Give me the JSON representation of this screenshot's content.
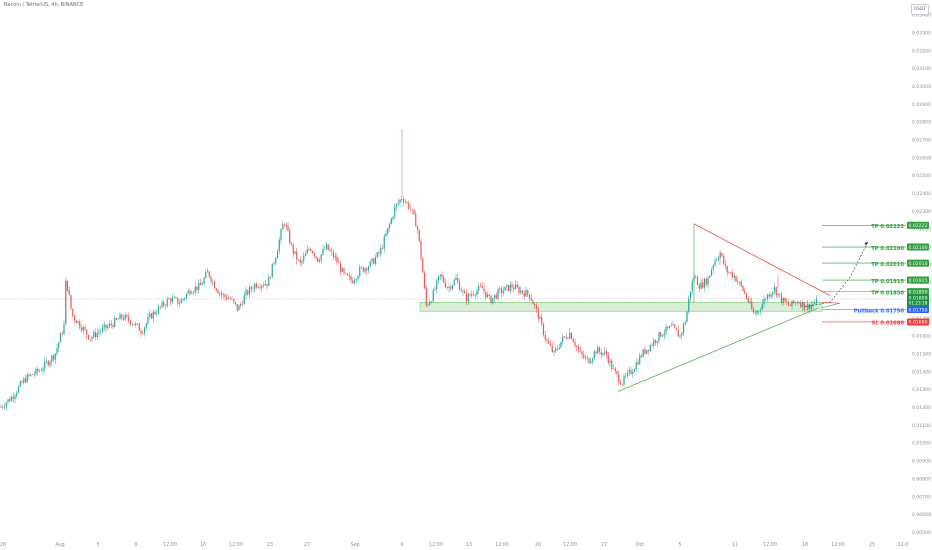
{
  "header": {
    "symbol": "Bacoin / TetherUS, 4h, BINANCE"
  },
  "currency_button": "USDT",
  "price_axis": {
    "ticks": [
      "0.03400",
      "0.03300",
      "0.03200",
      "0.03100",
      "0.03000",
      "0.02900",
      "0.02800",
      "0.02700",
      "0.02600",
      "0.02500",
      "0.02400",
      "0.02300",
      "0.02200",
      "0.02100",
      "0.02000",
      "0.01900",
      "0.01800",
      "0.01700",
      "0.01600",
      "0.01500",
      "0.01400",
      "0.01300",
      "0.01200",
      "0.01100",
      "0.01000",
      "0.00900",
      "0.00800",
      "0.00700",
      "0.00600",
      "0.00500"
    ]
  },
  "time_axis": {
    "labels": [
      "26",
      "Aug",
      "5",
      "9",
      "12:00",
      "16",
      "12:00",
      "23",
      "27",
      "Sep",
      "6",
      "12:00",
      "13",
      "12:00",
      "20",
      "12:00",
      "27",
      "Oct",
      "5",
      "11",
      "12:00",
      "18",
      "12:00",
      "25",
      "12:0"
    ]
  },
  "chart_data": {
    "type": "candlestick",
    "pair": "Bacoin/USDT",
    "interval": "4h",
    "exchange": "BINANCE",
    "ylim": [
      0.0048,
      0.0344
    ],
    "close_path": [
      [
        0,
        0.012
      ],
      [
        12,
        0.0126
      ],
      [
        25,
        0.0136
      ],
      [
        40,
        0.0141
      ],
      [
        55,
        0.015
      ],
      [
        64,
        0.0166
      ],
      [
        66,
        0.0193
      ],
      [
        72,
        0.0172
      ],
      [
        82,
        0.0165
      ],
      [
        90,
        0.0159
      ],
      [
        100,
        0.0163
      ],
      [
        110,
        0.0166
      ],
      [
        122,
        0.0171
      ],
      [
        132,
        0.0168
      ],
      [
        142,
        0.0163
      ],
      [
        150,
        0.0171
      ],
      [
        160,
        0.0176
      ],
      [
        170,
        0.0181
      ],
      [
        180,
        0.0179
      ],
      [
        190,
        0.0186
      ],
      [
        200,
        0.0188
      ],
      [
        208,
        0.0196
      ],
      [
        214,
        0.0189
      ],
      [
        222,
        0.0183
      ],
      [
        230,
        0.0181
      ],
      [
        238,
        0.0175
      ],
      [
        245,
        0.0183
      ],
      [
        255,
        0.0189
      ],
      [
        268,
        0.019
      ],
      [
        276,
        0.0206
      ],
      [
        284,
        0.0225
      ],
      [
        292,
        0.0209
      ],
      [
        300,
        0.02
      ],
      [
        310,
        0.021
      ],
      [
        318,
        0.0203
      ],
      [
        326,
        0.021
      ],
      [
        336,
        0.0203
      ],
      [
        344,
        0.0194
      ],
      [
        352,
        0.0191
      ],
      [
        360,
        0.0197
      ],
      [
        370,
        0.02
      ],
      [
        380,
        0.0207
      ],
      [
        388,
        0.022
      ],
      [
        395,
        0.0232
      ],
      [
        402,
        0.0238
      ],
      [
        410,
        0.0232
      ],
      [
        417,
        0.0222
      ],
      [
        422,
        0.02
      ],
      [
        426,
        0.0177
      ],
      [
        432,
        0.0182
      ],
      [
        440,
        0.0194
      ],
      [
        448,
        0.0187
      ],
      [
        456,
        0.0192
      ],
      [
        466,
        0.0181
      ],
      [
        474,
        0.0185
      ],
      [
        482,
        0.0187
      ],
      [
        490,
        0.018
      ],
      [
        500,
        0.0185
      ],
      [
        512,
        0.0188
      ],
      [
        522,
        0.0185
      ],
      [
        530,
        0.0183
      ],
      [
        538,
        0.0172
      ],
      [
        546,
        0.0158
      ],
      [
        554,
        0.015
      ],
      [
        562,
        0.0158
      ],
      [
        570,
        0.0162
      ],
      [
        580,
        0.015
      ],
      [
        588,
        0.0146
      ],
      [
        596,
        0.0152
      ],
      [
        606,
        0.015
      ],
      [
        614,
        0.014
      ],
      [
        622,
        0.0134
      ],
      [
        632,
        0.0141
      ],
      [
        642,
        0.015
      ],
      [
        652,
        0.0156
      ],
      [
        662,
        0.0162
      ],
      [
        672,
        0.0165
      ],
      [
        680,
        0.016
      ],
      [
        686,
        0.017
      ],
      [
        690,
        0.0185
      ],
      [
        694,
        0.0194
      ],
      [
        700,
        0.0188
      ],
      [
        708,
        0.0192
      ],
      [
        714,
        0.0202
      ],
      [
        720,
        0.0207
      ],
      [
        726,
        0.0197
      ],
      [
        734,
        0.0194
      ],
      [
        742,
        0.0187
      ],
      [
        748,
        0.018
      ],
      [
        754,
        0.0172
      ],
      [
        760,
        0.0176
      ],
      [
        766,
        0.0182
      ],
      [
        774,
        0.0187
      ],
      [
        782,
        0.018
      ],
      [
        790,
        0.0177
      ],
      [
        798,
        0.018
      ],
      [
        806,
        0.0176
      ],
      [
        812,
        0.0178
      ],
      [
        818,
        0.0179
      ]
    ],
    "price_line": 0.01809,
    "support_zone": [
      0.0174,
      0.0179
    ],
    "fan_line": {
      "from": [
        618,
        0.0129
      ],
      "to": [
        818,
        0.01758
      ]
    },
    "resistance_line": {
      "from": [
        694,
        0.0223
      ],
      "to": [
        830,
        0.01828
      ]
    },
    "projected_path": [
      [
        805,
        0.01765
      ],
      [
        830,
        0.0179
      ],
      [
        850,
        0.0193
      ],
      [
        868,
        0.0213
      ]
    ],
    "targets": [
      {
        "label": "TP 0.02222",
        "value": 0.02222,
        "tag": "0.02222"
      },
      {
        "label": "TP 0.02100",
        "value": 0.021,
        "tag": "0.02100"
      },
      {
        "label": "TP 0.02010",
        "value": 0.0201,
        "tag": "0.02010"
      },
      {
        "label": "TP 0.01915",
        "value": 0.01915,
        "tag": "0.01915"
      },
      {
        "label": "TP 0.01850",
        "value": 0.0185,
        "tag": "0.01850"
      }
    ],
    "current_price": {
      "value": 0.01809,
      "tag": "0.01809",
      "countdown": "01:23:18"
    },
    "pullback": {
      "label": "Pullback 0.01750",
      "value": 0.0175,
      "tag": "0.01750"
    },
    "stop_loss": {
      "label": "SL 0.01680",
      "value": 0.0168,
      "tag": "0.01680"
    },
    "colors": {
      "up": "#26a69a",
      "down": "#ef5350",
      "target": "#2e9e3e",
      "pullback": "#2962ff",
      "stop": "#ef3b3b",
      "zone": "#cdebc9"
    }
  }
}
